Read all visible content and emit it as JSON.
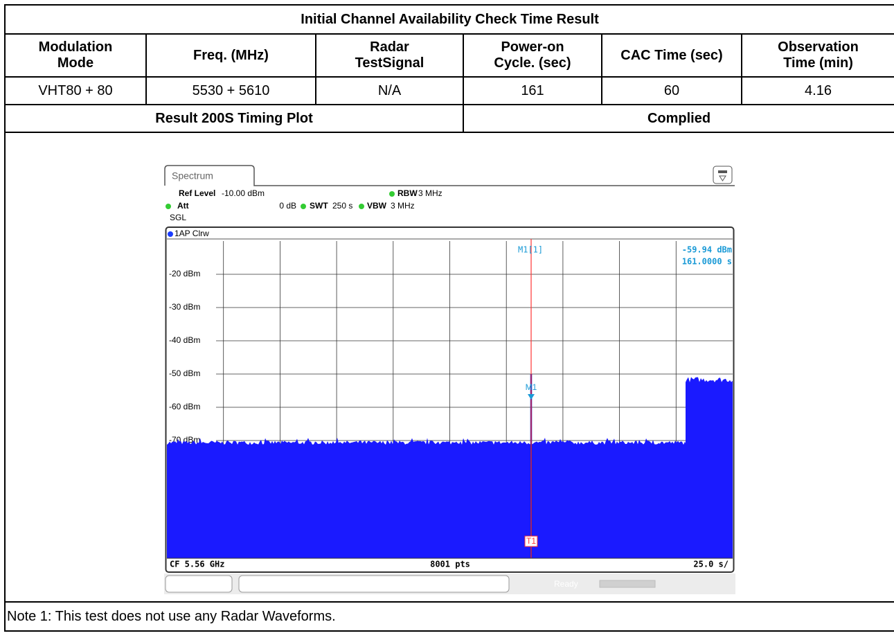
{
  "table": {
    "title": "Initial Channel Availability Check Time Result",
    "headers": [
      "Modulation Mode",
      "Freq. (MHz)",
      "Radar TestSignal",
      "Power-on Cycle. (sec)",
      "CAC Time (sec)",
      "Observation Time (min)"
    ],
    "rows": [
      [
        "VHT80 + 80",
        "5530 + 5610",
        "N/A",
        "161",
        "60",
        "4.16"
      ]
    ],
    "result_label": "Result 200S Timing Plot",
    "result_value": "Complied"
  },
  "plot": {
    "tab": "Spectrum",
    "ref_level_label": "Ref Level",
    "ref_level": "-10.00 dBm",
    "rbw_label": "RBW",
    "rbw": "3 MHz",
    "att_label": "Att",
    "att": "0 dB",
    "swt_label": "SWT",
    "swt": "250 s",
    "vbw_label": "VBW",
    "vbw": "3 MHz",
    "mode": "SGL",
    "trace": "1AP Clrw",
    "marker_label": "M1[1]",
    "marker_level": "-59.94 dBm",
    "marker_time": "161.0000 s",
    "y_labels": [
      "-20 dBm",
      "-30 dBm",
      "-40 dBm",
      "-50 dBm",
      "-60 dBm",
      "-70 dBm"
    ],
    "marker_tag": "M1",
    "trigger_tag": "T1",
    "center": "CF 5.56 GHz",
    "points": "8001 pts",
    "span": "25.0 s/",
    "status": "Ready"
  },
  "note": "Note 1: This test does not use any Radar Waveforms."
}
